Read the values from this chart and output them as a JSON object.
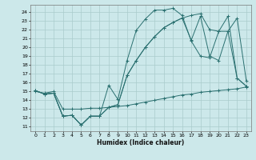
{
  "xlabel": "Humidex (Indice chaleur)",
  "background_color": "#cce8ea",
  "grid_color": "#aacccc",
  "line_color": "#2a7070",
  "xlim": [
    -0.5,
    23.5
  ],
  "ylim": [
    10.5,
    24.8
  ],
  "xticks": [
    0,
    1,
    2,
    3,
    4,
    5,
    6,
    7,
    8,
    9,
    10,
    11,
    12,
    13,
    14,
    15,
    16,
    17,
    18,
    19,
    20,
    21,
    22,
    23
  ],
  "yticks": [
    11,
    12,
    13,
    14,
    15,
    16,
    17,
    18,
    19,
    20,
    21,
    22,
    23,
    24
  ],
  "series1_x": [
    0,
    1,
    2,
    3,
    4,
    5,
    6,
    7,
    8,
    9,
    10,
    11,
    12,
    13,
    14,
    15,
    16,
    17,
    18,
    19,
    20,
    21,
    22,
    23
  ],
  "series1_y": [
    15.1,
    14.7,
    14.8,
    12.2,
    12.3,
    11.2,
    12.2,
    12.2,
    15.7,
    14.1,
    18.5,
    21.9,
    23.2,
    24.2,
    24.2,
    24.4,
    23.6,
    20.7,
    19.0,
    18.8,
    21.8,
    23.5,
    16.5,
    15.6
  ],
  "series2_x": [
    0,
    1,
    2,
    3,
    4,
    5,
    6,
    7,
    8,
    9,
    10,
    11,
    12,
    13,
    14,
    15,
    16,
    17,
    18,
    19,
    20,
    21,
    22,
    23
  ],
  "series2_y": [
    15.1,
    14.7,
    14.8,
    12.2,
    12.3,
    11.2,
    12.2,
    12.2,
    13.2,
    13.5,
    16.8,
    18.5,
    20.0,
    21.2,
    22.2,
    22.8,
    23.3,
    23.6,
    23.8,
    22.0,
    21.8,
    21.8,
    16.5,
    15.6
  ],
  "series3_x": [
    0,
    1,
    2,
    3,
    4,
    5,
    6,
    7,
    8,
    9,
    10,
    11,
    12,
    13,
    14,
    15,
    16,
    17,
    18,
    19,
    20,
    21,
    22,
    23
  ],
  "series3_y": [
    15.1,
    14.7,
    14.8,
    12.2,
    12.3,
    11.2,
    12.2,
    12.2,
    13.2,
    13.5,
    16.8,
    18.5,
    20.0,
    21.2,
    22.2,
    22.8,
    23.3,
    20.8,
    23.5,
    19.0,
    18.5,
    21.8,
    23.3,
    16.2
  ],
  "series4_x": [
    0,
    1,
    2,
    3,
    4,
    5,
    6,
    7,
    8,
    9,
    10,
    11,
    12,
    13,
    14,
    15,
    16,
    17,
    18,
    19,
    20,
    21,
    22,
    23
  ],
  "series4_y": [
    15.0,
    14.8,
    15.0,
    13.0,
    13.0,
    13.0,
    13.1,
    13.1,
    13.2,
    13.3,
    13.4,
    13.6,
    13.8,
    14.0,
    14.2,
    14.4,
    14.6,
    14.7,
    14.9,
    15.0,
    15.1,
    15.2,
    15.3,
    15.5
  ]
}
